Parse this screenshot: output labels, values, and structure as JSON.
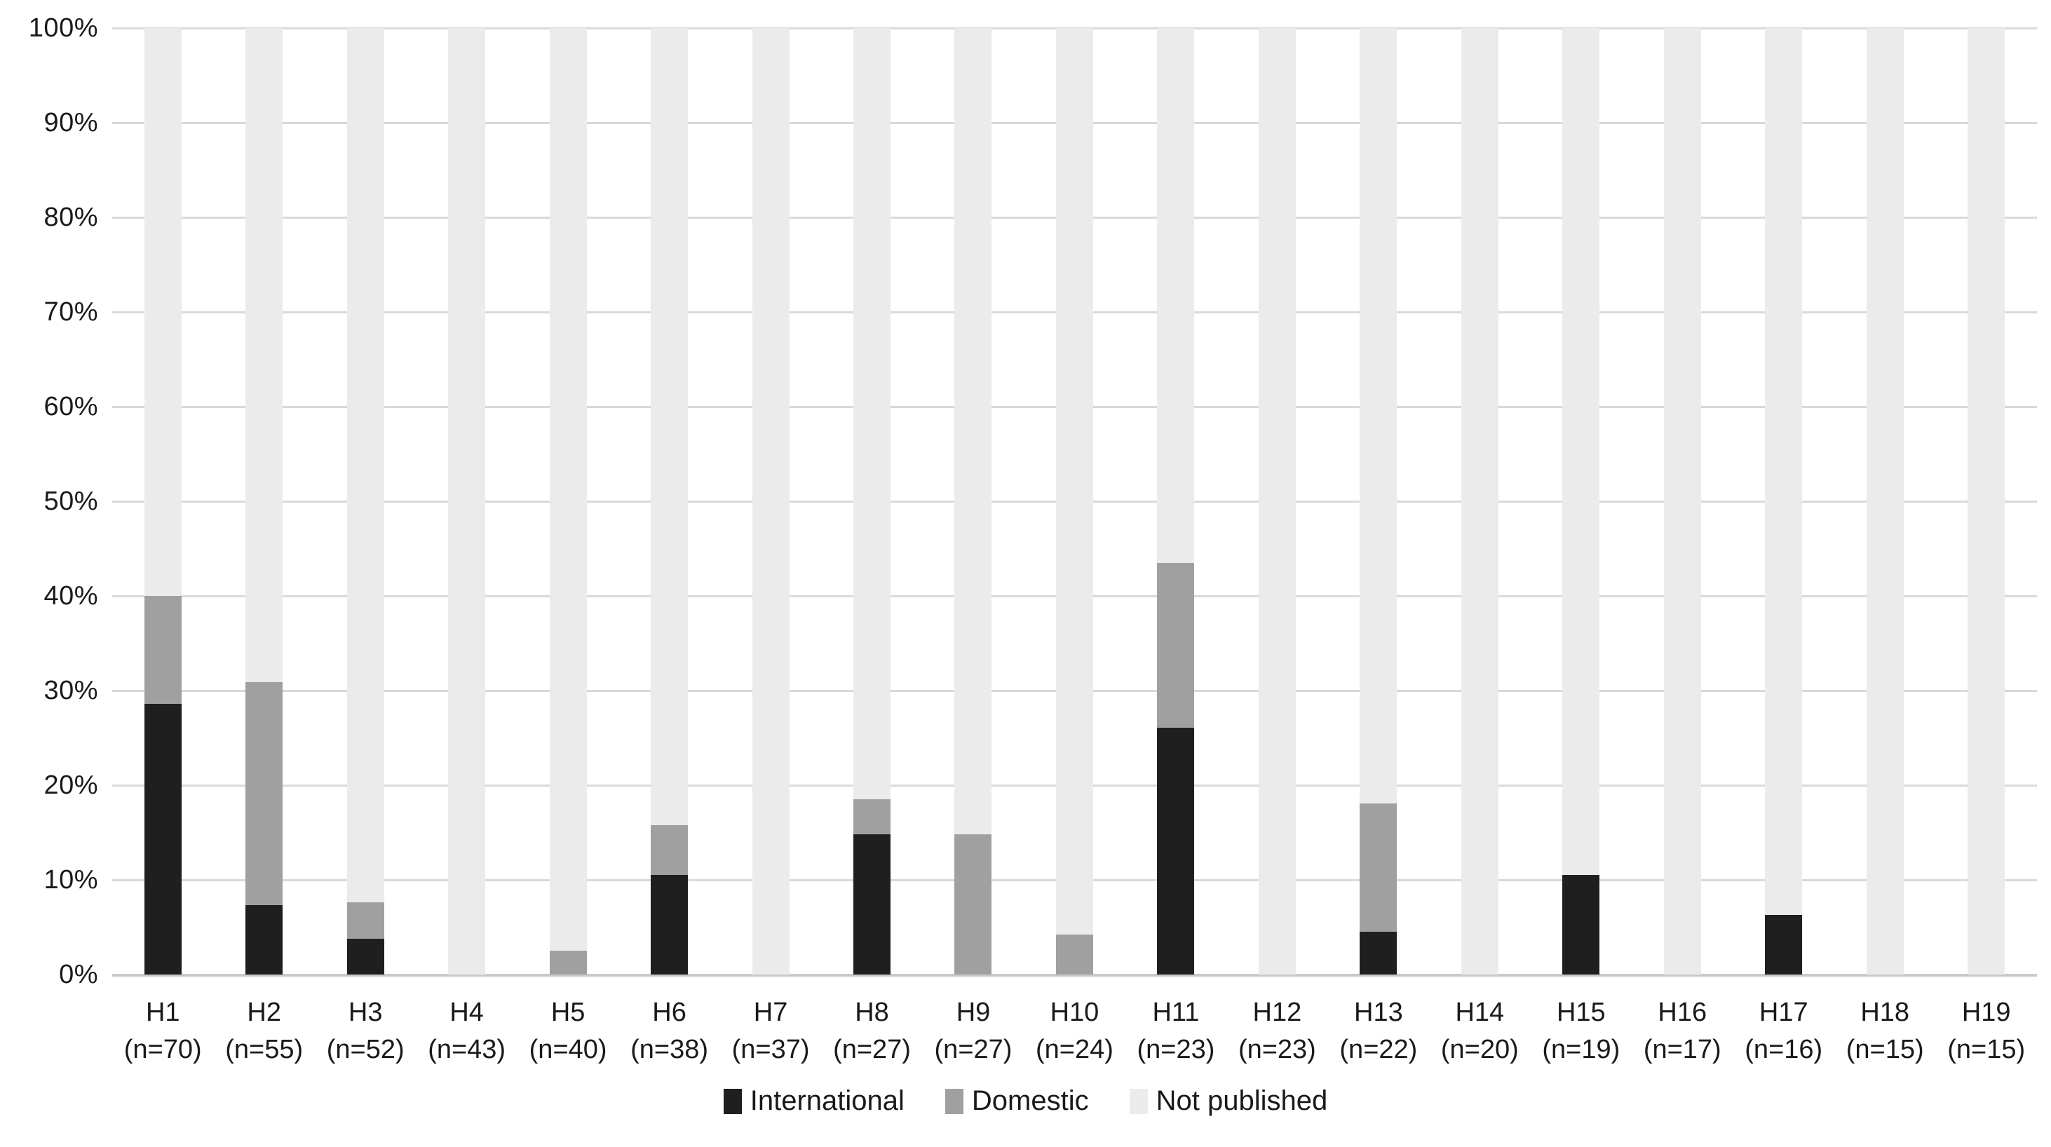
{
  "chart_data": {
    "type": "bar",
    "stacked": true,
    "stack_unit": "percent",
    "title": "",
    "xlabel": "",
    "ylabel": "",
    "ylim": [
      0,
      100
    ],
    "grid": true,
    "legend_position": "bottom",
    "yticks": [
      "0%",
      "10%",
      "20%",
      "30%",
      "40%",
      "50%",
      "60%",
      "70%",
      "80%",
      "90%",
      "100%"
    ],
    "ytick_values": [
      0,
      10,
      20,
      30,
      40,
      50,
      60,
      70,
      80,
      90,
      100
    ],
    "categories": [
      "H1",
      "H2",
      "H3",
      "H4",
      "H5",
      "H6",
      "H7",
      "H8",
      "H9",
      "H10",
      "H11",
      "H12",
      "H13",
      "H14",
      "H15",
      "H16",
      "H17",
      "H18",
      "H19"
    ],
    "n_labels": [
      "(n=70)",
      "(n=55)",
      "(n=52)",
      "(n=43)",
      "(n=40)",
      "(n=38)",
      "(n=37)",
      "(n=27)",
      "(n=27)",
      "(n=24)",
      "(n=23)",
      "(n=23)",
      "(n=22)",
      "(n=20)",
      "(n=19)",
      "(n=17)",
      "(n=16)",
      "(n=15)",
      "(n=15)"
    ],
    "series": [
      {
        "name": "International",
        "color": "#1f1f1f",
        "values": [
          28.6,
          7.3,
          3.8,
          0,
          0,
          10.5,
          0,
          14.8,
          0,
          0,
          26.1,
          0,
          4.5,
          0,
          10.5,
          0,
          6.3,
          0,
          0
        ]
      },
      {
        "name": "Domestic",
        "color": "#a0a0a0",
        "values": [
          11.4,
          23.6,
          3.8,
          0,
          2.5,
          5.3,
          0,
          3.7,
          14.8,
          4.2,
          17.4,
          0,
          13.6,
          0,
          0,
          0,
          0,
          0,
          0
        ]
      },
      {
        "name": "Not published",
        "color": "#ebebeb",
        "values": [
          60.0,
          69.1,
          92.4,
          100,
          97.5,
          84.2,
          100,
          81.5,
          85.2,
          95.8,
          56.5,
          100,
          81.9,
          100,
          89.5,
          100,
          93.7,
          100,
          100
        ]
      }
    ],
    "colors": {
      "gridline": "#d9d9d9",
      "text": "#1a1a1a",
      "background": "#ffffff"
    }
  }
}
